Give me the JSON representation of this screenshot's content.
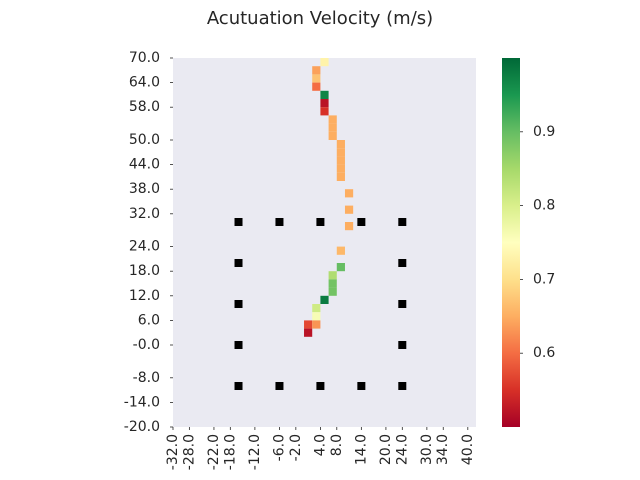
{
  "chart_data": {
    "type": "heatmap",
    "title": "Acutuation Velocity (m/s)",
    "xlabel": "",
    "ylabel": "",
    "xlim": [
      -32.0,
      42.0
    ],
    "ylim": [
      -20.0,
      70.0
    ],
    "xticks": [
      -32.0,
      -28.0,
      -22.0,
      -18.0,
      -12.0,
      -6.0,
      -2.0,
      4.0,
      8.0,
      14.0,
      20.0,
      24.0,
      30.0,
      34.0,
      40.0
    ],
    "yticks": [
      70.0,
      64.0,
      58.0,
      50.0,
      44.0,
      38.0,
      32.0,
      24.0,
      18.0,
      12.0,
      6.0,
      -0.0,
      -8.0,
      -14.0,
      -20.0
    ],
    "xtick_labels": [
      "-32.0",
      "-28.0",
      "-22.0",
      "-18.0",
      "-12.0",
      "-6.0",
      "-2.0",
      "4.0",
      "8.0",
      "14.0",
      "20.0",
      "24.0",
      "30.0",
      "34.0",
      "40.0"
    ],
    "ytick_labels": [
      "70.0",
      "64.0",
      "58.0",
      "50.0",
      "44.0",
      "38.0",
      "32.0",
      "24.0",
      "18.0",
      "12.0",
      "6.0",
      "-0.0",
      "-8.0",
      "-14.0",
      "-20.0"
    ],
    "cell_size": 2.0,
    "colorbar": {
      "min": 0.5,
      "max": 1.0,
      "ticks": [
        0.6,
        0.7,
        0.8,
        0.9
      ],
      "tick_labels": [
        "0.6",
        "0.7",
        "0.8",
        "0.9"
      ],
      "colormap": "RdYlGn"
    },
    "cells": [
      {
        "x": 4.0,
        "y": 70.0,
        "v": 0.73
      },
      {
        "x": 2.0,
        "y": 68.0,
        "v": 0.64
      },
      {
        "x": 2.0,
        "y": 66.0,
        "v": 0.67
      },
      {
        "x": 2.0,
        "y": 64.0,
        "v": 0.6
      },
      {
        "x": 4.0,
        "y": 62.0,
        "v": 0.97
      },
      {
        "x": 4.0,
        "y": 60.0,
        "v": 0.52
      },
      {
        "x": 4.0,
        "y": 58.0,
        "v": 0.55
      },
      {
        "x": 6.0,
        "y": 56.0,
        "v": 0.65
      },
      {
        "x": 6.0,
        "y": 54.0,
        "v": 0.65
      },
      {
        "x": 6.0,
        "y": 52.0,
        "v": 0.65
      },
      {
        "x": 8.0,
        "y": 50.0,
        "v": 0.65
      },
      {
        "x": 8.0,
        "y": 48.0,
        "v": 0.65
      },
      {
        "x": 8.0,
        "y": 46.0,
        "v": 0.65
      },
      {
        "x": 8.0,
        "y": 44.0,
        "v": 0.65
      },
      {
        "x": 8.0,
        "y": 42.0,
        "v": 0.65
      },
      {
        "x": 10.0,
        "y": 38.0,
        "v": 0.65
      },
      {
        "x": 10.0,
        "y": 34.0,
        "v": 0.65
      },
      {
        "x": 10.0,
        "y": 30.0,
        "v": 0.65
      },
      {
        "x": 8.0,
        "y": 24.0,
        "v": 0.66
      },
      {
        "x": 8.0,
        "y": 20.0,
        "v": 0.9
      },
      {
        "x": 6.0,
        "y": 18.0,
        "v": 0.84
      },
      {
        "x": 6.0,
        "y": 16.0,
        "v": 0.89
      },
      {
        "x": 6.0,
        "y": 14.0,
        "v": 0.89
      },
      {
        "x": 4.0,
        "y": 12.0,
        "v": 0.98
      },
      {
        "x": 2.0,
        "y": 10.0,
        "v": 0.81
      },
      {
        "x": 2.0,
        "y": 8.0,
        "v": 0.76
      },
      {
        "x": 0.0,
        "y": 6.0,
        "v": 0.57
      },
      {
        "x": 2.0,
        "y": 6.0,
        "v": 0.63
      },
      {
        "x": 0.0,
        "y": 4.0,
        "v": 0.52
      }
    ],
    "markers": [
      {
        "x": -16.0,
        "y": 30.0
      },
      {
        "x": -6.0,
        "y": 30.0
      },
      {
        "x": 4.0,
        "y": 30.0
      },
      {
        "x": 14.0,
        "y": 30.0
      },
      {
        "x": 24.0,
        "y": 30.0
      },
      {
        "x": -16.0,
        "y": 20.0
      },
      {
        "x": 24.0,
        "y": 20.0
      },
      {
        "x": -16.0,
        "y": 10.0
      },
      {
        "x": 24.0,
        "y": 10.0
      },
      {
        "x": -16.0,
        "y": 0.0
      },
      {
        "x": 24.0,
        "y": 0.0
      },
      {
        "x": -16.0,
        "y": -10.0
      },
      {
        "x": -6.0,
        "y": -10.0
      },
      {
        "x": 4.0,
        "y": -10.0
      },
      {
        "x": 14.0,
        "y": -10.0
      },
      {
        "x": 24.0,
        "y": -10.0
      }
    ],
    "colors": {
      "plot_background": "#eaeaf2",
      "marker": "#000000",
      "text": "#262626"
    }
  }
}
